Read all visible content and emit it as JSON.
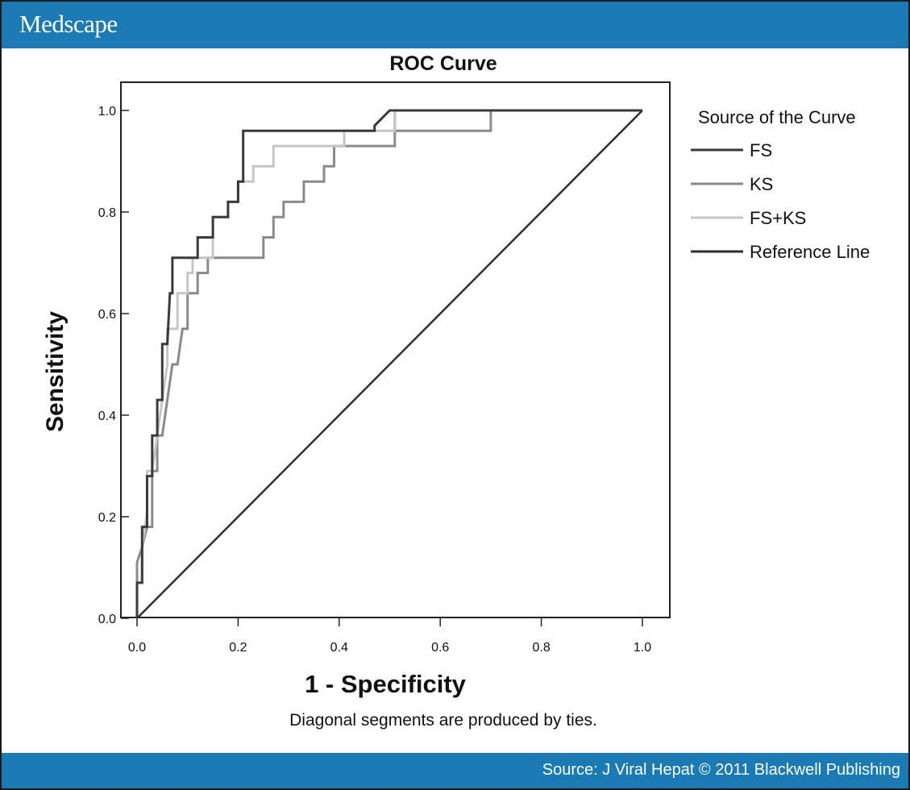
{
  "header": {
    "brand": "Medscape"
  },
  "footer": {
    "source": "Source: J Viral Hepat © 2011 Blackwell Publishing"
  },
  "chart_data": {
    "type": "line",
    "title": "ROC Curve",
    "xlabel": "1 - Specificity",
    "ylabel": "Sensitivity",
    "note": "Diagonal segments are produced by ties.",
    "xlim": [
      0,
      1
    ],
    "ylim": [
      0,
      1
    ],
    "x_ticks": [
      "0.0",
      "0.2",
      "0.4",
      "0.6",
      "0.8",
      "1.0"
    ],
    "y_ticks": [
      "0.0",
      "0.2",
      "0.4",
      "0.6",
      "0.8",
      "1.0"
    ],
    "grid": false,
    "legend": {
      "title": "Source of the Curve",
      "placement": "right",
      "entries": [
        "FS",
        "KS",
        "FS+KS",
        "Reference Line"
      ]
    },
    "series": [
      {
        "name": "FS",
        "color": "#3a3a3a",
        "points": [
          [
            0,
            0
          ],
          [
            0,
            0.07
          ],
          [
            0.01,
            0.07
          ],
          [
            0.01,
            0.18
          ],
          [
            0.02,
            0.18
          ],
          [
            0.02,
            0.28
          ],
          [
            0.03,
            0.28
          ],
          [
            0.03,
            0.36
          ],
          [
            0.04,
            0.36
          ],
          [
            0.04,
            0.43
          ],
          [
            0.05,
            0.43
          ],
          [
            0.05,
            0.54
          ],
          [
            0.06,
            0.54
          ],
          [
            0.065,
            0.64
          ],
          [
            0.07,
            0.64
          ],
          [
            0.07,
            0.71
          ],
          [
            0.12,
            0.71
          ],
          [
            0.12,
            0.75
          ],
          [
            0.15,
            0.75
          ],
          [
            0.15,
            0.79
          ],
          [
            0.18,
            0.79
          ],
          [
            0.18,
            0.82
          ],
          [
            0.2,
            0.82
          ],
          [
            0.2,
            0.86
          ],
          [
            0.21,
            0.86
          ],
          [
            0.21,
            0.96
          ],
          [
            0.4,
            0.96
          ],
          [
            0.47,
            0.96
          ],
          [
            0.47,
            0.97
          ],
          [
            0.5,
            1.0
          ],
          [
            1.0,
            1.0
          ]
        ]
      },
      {
        "name": "KS",
        "color": "#8a8a8a",
        "points": [
          [
            0,
            0
          ],
          [
            0,
            0.11
          ],
          [
            0.01,
            0.14
          ],
          [
            0.02,
            0.18
          ],
          [
            0.03,
            0.18
          ],
          [
            0.03,
            0.29
          ],
          [
            0.04,
            0.29
          ],
          [
            0.04,
            0.36
          ],
          [
            0.05,
            0.36
          ],
          [
            0.06,
            0.43
          ],
          [
            0.07,
            0.5
          ],
          [
            0.08,
            0.5
          ],
          [
            0.09,
            0.57
          ],
          [
            0.1,
            0.57
          ],
          [
            0.1,
            0.64
          ],
          [
            0.12,
            0.64
          ],
          [
            0.12,
            0.68
          ],
          [
            0.14,
            0.68
          ],
          [
            0.14,
            0.71
          ],
          [
            0.25,
            0.71
          ],
          [
            0.25,
            0.75
          ],
          [
            0.27,
            0.75
          ],
          [
            0.27,
            0.79
          ],
          [
            0.29,
            0.79
          ],
          [
            0.29,
            0.82
          ],
          [
            0.33,
            0.82
          ],
          [
            0.33,
            0.86
          ],
          [
            0.37,
            0.86
          ],
          [
            0.37,
            0.89
          ],
          [
            0.39,
            0.89
          ],
          [
            0.39,
            0.93
          ],
          [
            0.51,
            0.93
          ],
          [
            0.51,
            0.96
          ],
          [
            0.51,
            0.96
          ],
          [
            0.51,
            0.97
          ],
          [
            0.51,
            1.0
          ],
          [
            0.7,
            1.0
          ],
          [
            0.7,
            0.96
          ],
          [
            0.51,
            0.96
          ]
        ]
      },
      {
        "name": "FS+KS",
        "color": "#c6c6c6",
        "points": [
          [
            0,
            0
          ],
          [
            0,
            0.07
          ],
          [
            0.01,
            0.07
          ],
          [
            0.01,
            0.14
          ],
          [
            0.02,
            0.21
          ],
          [
            0.02,
            0.29
          ],
          [
            0.03,
            0.29
          ],
          [
            0.04,
            0.36
          ],
          [
            0.05,
            0.43
          ],
          [
            0.06,
            0.5
          ],
          [
            0.06,
            0.57
          ],
          [
            0.08,
            0.57
          ],
          [
            0.08,
            0.64
          ],
          [
            0.1,
            0.64
          ],
          [
            0.1,
            0.68
          ],
          [
            0.11,
            0.68
          ],
          [
            0.11,
            0.71
          ],
          [
            0.15,
            0.71
          ],
          [
            0.15,
            0.79
          ],
          [
            0.18,
            0.79
          ],
          [
            0.18,
            0.82
          ],
          [
            0.2,
            0.82
          ],
          [
            0.2,
            0.86
          ],
          [
            0.23,
            0.86
          ],
          [
            0.23,
            0.89
          ],
          [
            0.27,
            0.89
          ],
          [
            0.27,
            0.93
          ],
          [
            0.41,
            0.93
          ],
          [
            0.41,
            0.96
          ],
          [
            0.51,
            0.96
          ],
          [
            0.51,
            1.0
          ],
          [
            1.0,
            1.0
          ]
        ]
      },
      {
        "name": "Reference Line",
        "color": "#2f2f2f",
        "points": [
          [
            0,
            0
          ],
          [
            1,
            1
          ]
        ]
      }
    ]
  }
}
